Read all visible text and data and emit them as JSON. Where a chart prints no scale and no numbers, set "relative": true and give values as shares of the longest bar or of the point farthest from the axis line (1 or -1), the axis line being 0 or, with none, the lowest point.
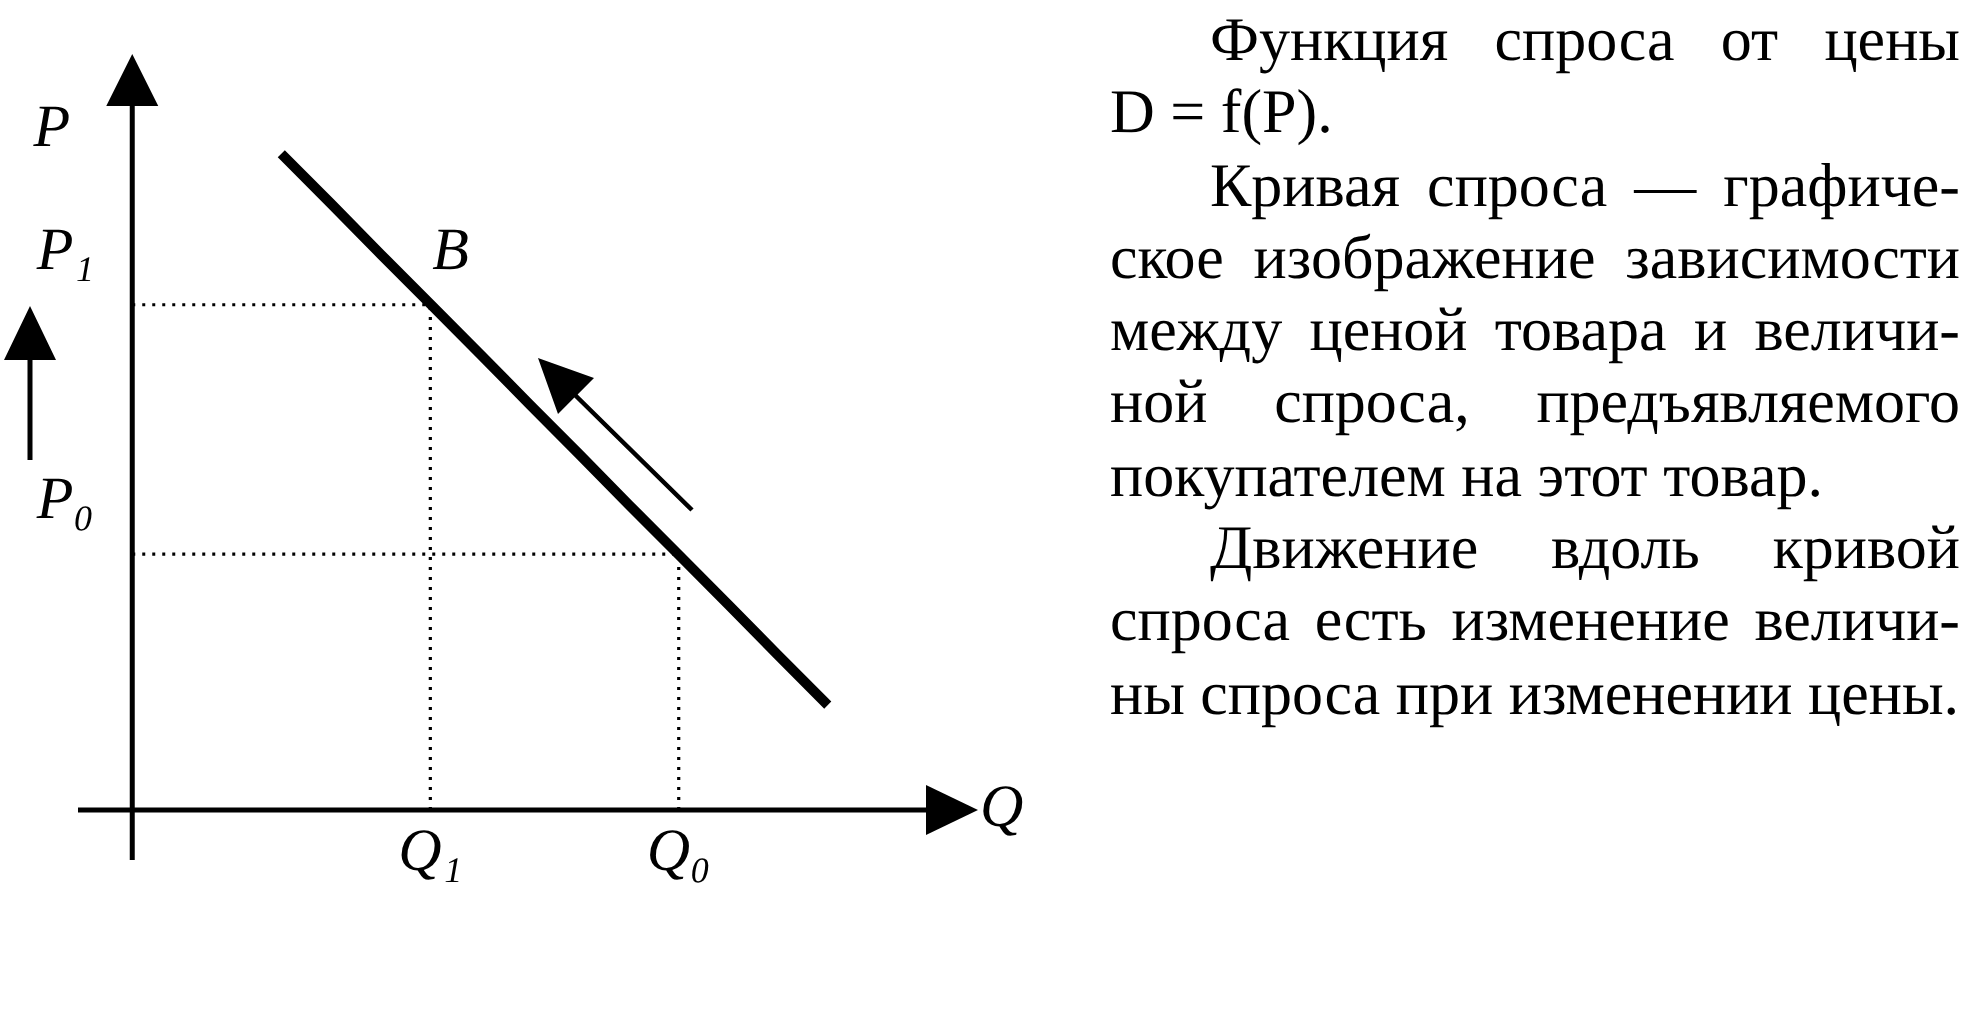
{
  "chart_data": {
    "type": "line",
    "relative": true,
    "categories": [
      null,
      null,
      null,
      null,
      null,
      null,
      "Q₁",
      null,
      null,
      null,
      null,
      "Q₀",
      null,
      null,
      null
    ],
    "values": [
      null,
      null,
      null,
      1,
      0.924,
      0.847,
      0.771,
      0.695,
      0.618,
      0.542,
      0.465,
      0.389,
      0.313,
      0.236,
      0.16
    ],
    "color": "#000000",
    "xlabel": "Q",
    "ylabel": "P",
    "ref_lines": [
      {
        "axis": "y",
        "value": 0.77,
        "label": "P₁",
        "line_style": "dotted"
      },
      {
        "axis": "y",
        "value": 0.39,
        "label": "P₀",
        "line_style": "dotted"
      },
      {
        "axis": "x",
        "value": "Q₁",
        "line_style": "dotted"
      },
      {
        "axis": "x",
        "value": "Q₀",
        "line_style": "dotted"
      }
    ],
    "annotations": [
      {
        "text": "B",
        "x": "Q₁",
        "y": 0.77
      },
      "Функция спроса от цены D = f(P).",
      "Кривая спроса — графиче- ское изображение зависимости между ценой товара и величи- ной спроса, предъявляемого покупателем на этот товар.",
      "Движение вдоль кривой спроса есть изменение величи- ны спроса при изменении цены."
    ]
  }
}
